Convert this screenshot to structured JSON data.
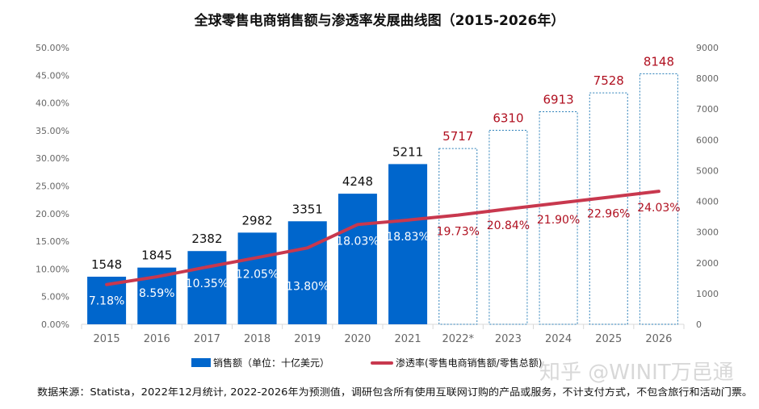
{
  "chart_data": {
    "type": "bar+line",
    "title": "全球零售电商销售额与渗透率发展曲线图（2015-2026年）",
    "categories": [
      "2015",
      "2016",
      "2017",
      "2018",
      "2019",
      "2020",
      "2021",
      "2022*",
      "2023",
      "2024",
      "2025",
      "2026"
    ],
    "forecast_from_index": 7,
    "series": [
      {
        "name": "销售额（单位：十亿美元）",
        "type": "bar",
        "axis": "right",
        "color": "#0066CC",
        "values": [
          1548,
          1845,
          2382,
          2982,
          3351,
          4248,
          5211,
          5717,
          6310,
          6913,
          7528,
          8148
        ],
        "labels": [
          "1548",
          "1845",
          "2382",
          "2982",
          "3351",
          "4248",
          "5211",
          "5717",
          "6310",
          "6913",
          "7528",
          "8148"
        ]
      },
      {
        "name": "渗透率(零售电商销售额/零售总额)",
        "type": "line",
        "axis": "left",
        "color": "#C8384E",
        "values": [
          7.18,
          8.59,
          10.35,
          12.05,
          13.8,
          18.03,
          18.83,
          19.73,
          20.84,
          21.9,
          22.96,
          24.03
        ],
        "labels": [
          "7.18%",
          "8.59%",
          "10.35%",
          "12.05%",
          "13.80%",
          "18.03%",
          "18.83%",
          "19.73%",
          "20.84%",
          "21.90%",
          "22.96%",
          "24.03%"
        ]
      }
    ],
    "left_axis": {
      "range": [
        0,
        50
      ],
      "ticks": [
        "0.00%",
        "5.00%",
        "10.00%",
        "15.00%",
        "20.00%",
        "25.00%",
        "30.00%",
        "35.00%",
        "40.00%",
        "45.00%",
        "50.00%"
      ]
    },
    "right_axis": {
      "range": [
        0,
        9000
      ],
      "ticks": [
        "0",
        "1000",
        "2000",
        "3000",
        "4000",
        "5000",
        "6000",
        "7000",
        "8000",
        "9000"
      ]
    },
    "grid": false,
    "legend_position": "bottom"
  },
  "footnote": "数据来源：Statista，2022年12月统计, 2022-2026年为预测值，调研包含所有使用互联网订购的产品或服务，不计支付方式，不包含旅行和活动门票。",
  "watermark": "知乎 @WINIT万邑通"
}
